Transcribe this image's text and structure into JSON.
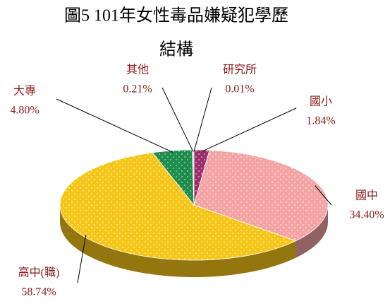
{
  "chart_data": {
    "type": "pie",
    "title": [
      "圖5 101年女性毒品嫌疑犯學歷",
      "結構"
    ],
    "categories": [
      "研究所",
      "國小",
      "國中",
      "高中(職)",
      "大專",
      "其他"
    ],
    "values": [
      0.01,
      1.84,
      34.4,
      58.74,
      4.8,
      0.21
    ],
    "value_labels": [
      "0.01%",
      "1.84%",
      "34.40%",
      "58.74%",
      "4.80%",
      "0.21%"
    ],
    "colors": [
      "#7a1f5c",
      "#9b2d6a",
      "#f4a3a3",
      "#f5c518",
      "#1e8c4a",
      "#c8c8c8"
    ]
  }
}
